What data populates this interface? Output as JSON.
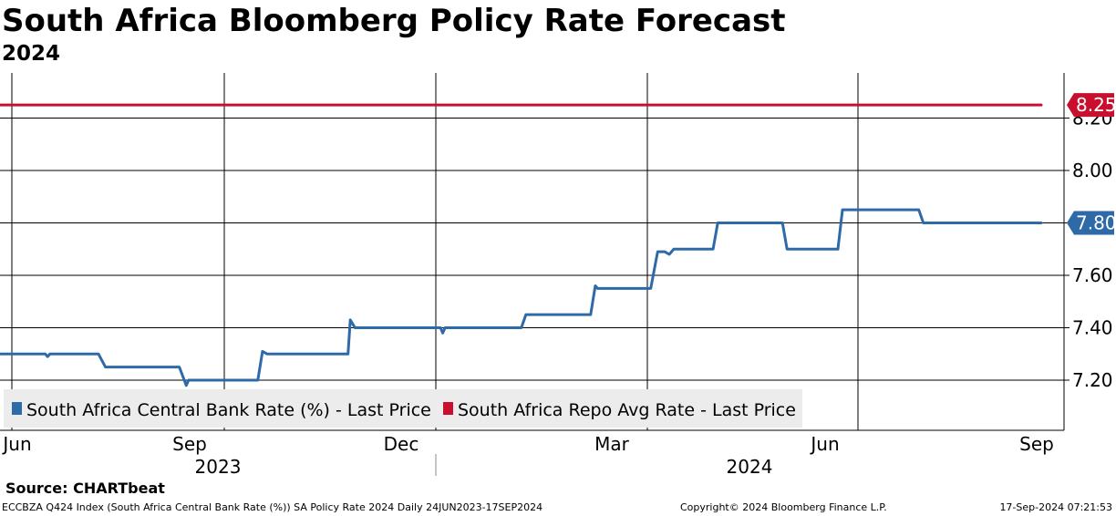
{
  "header": {
    "title": "South Africa Bloomberg Policy Rate Forecast",
    "subtitle": "2024"
  },
  "source": "Source: CHARTbeat",
  "footer": {
    "left": "ECCBZA Q424 Index (South Africa Central Bank Rate (%)) SA Policy Rate 2024  Daily 24JUN2023-17SEP2024",
    "copyright": "Copyright© 2024 Bloomberg Finance L.P.",
    "timestamp": "17-Sep-2024 07:21:53"
  },
  "colors": {
    "central_bank_series": "#2e6aa8",
    "repo_series": "#c8102e",
    "grid": "#000000"
  },
  "chart_data": {
    "type": "line",
    "x_range": [
      "2023-06-24",
      "2024-09-17"
    ],
    "month_ticks": [
      "Jun",
      "Sep",
      "Dec",
      "Mar",
      "Jun",
      "Sep"
    ],
    "year_labels": [
      "2023",
      "2024"
    ],
    "y_range": [
      7.0,
      8.3
    ],
    "y_ticks": [
      "7.20",
      "7.40",
      "7.60",
      "7.80",
      "8.00",
      "8.20"
    ],
    "grid": true,
    "legend_position": "bottom-left",
    "series": [
      {
        "name": "South Africa Central Bank Rate (%) - Last Price",
        "last_value_label": "7.80",
        "points": [
          [
            "2023-06-24",
            7.3
          ],
          [
            "2023-07-14",
            7.3
          ],
          [
            "2023-07-15",
            7.29
          ],
          [
            "2023-07-16",
            7.3
          ],
          [
            "2023-08-06",
            7.3
          ],
          [
            "2023-08-09",
            7.25
          ],
          [
            "2023-09-10",
            7.25
          ],
          [
            "2023-09-13",
            7.18
          ],
          [
            "2023-09-14",
            7.2
          ],
          [
            "2023-10-14",
            7.2
          ],
          [
            "2023-10-16",
            7.31
          ],
          [
            "2023-10-18",
            7.3
          ],
          [
            "2023-11-22",
            7.3
          ],
          [
            "2023-11-23",
            7.43
          ],
          [
            "2023-11-25",
            7.4
          ],
          [
            "2024-01-01",
            7.4
          ],
          [
            "2024-01-02",
            7.38
          ],
          [
            "2024-01-03",
            7.4
          ],
          [
            "2024-02-05",
            7.4
          ],
          [
            "2024-02-07",
            7.45
          ],
          [
            "2024-03-06",
            7.45
          ],
          [
            "2024-03-08",
            7.56
          ],
          [
            "2024-03-09",
            7.55
          ],
          [
            "2024-04-01",
            7.55
          ],
          [
            "2024-04-04",
            7.69
          ],
          [
            "2024-04-07",
            7.69
          ],
          [
            "2024-04-09",
            7.68
          ],
          [
            "2024-04-11",
            7.7
          ],
          [
            "2024-04-28",
            7.7
          ],
          [
            "2024-04-30",
            7.8
          ],
          [
            "2024-05-28",
            7.8
          ],
          [
            "2024-05-30",
            7.7
          ],
          [
            "2024-06-21",
            7.7
          ],
          [
            "2024-06-23",
            7.85
          ],
          [
            "2024-07-26",
            7.85
          ],
          [
            "2024-07-28",
            7.8
          ],
          [
            "2024-09-17",
            7.8
          ]
        ]
      },
      {
        "name": "South Africa Repo Avg Rate - Last Price",
        "last_value_label": "8.25",
        "points": [
          [
            "2023-06-24",
            8.25
          ],
          [
            "2024-09-17",
            8.25
          ]
        ]
      }
    ]
  }
}
